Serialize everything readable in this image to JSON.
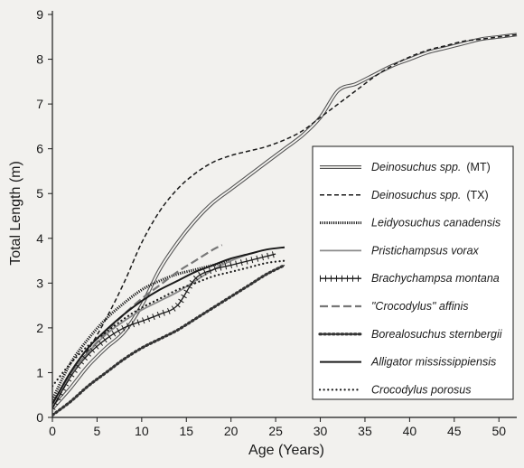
{
  "chart_data": {
    "type": "line",
    "title": "",
    "xlabel": "Age (Years)",
    "ylabel": "Total Length (m)",
    "xlim": [
      0,
      52
    ],
    "ylim": [
      0,
      9
    ],
    "xticks": [
      "0",
      "5",
      "10",
      "15",
      "20",
      "25",
      "30",
      "35",
      "40",
      "45",
      "50"
    ],
    "yticks": [
      "0",
      "1",
      "2",
      "3",
      "4",
      "5",
      "6",
      "7",
      "8",
      "9"
    ],
    "grid": false,
    "legend_position": "right",
    "series": [
      {
        "name": "Deinosuchus spp.",
        "name_suffix": "(MT)",
        "style": "double",
        "color": "#555555",
        "points": [
          [
            0,
            0.2
          ],
          [
            2,
            0.65
          ],
          [
            4,
            1.15
          ],
          [
            6,
            1.55
          ],
          [
            8,
            1.9
          ],
          [
            10,
            2.5
          ],
          [
            12,
            3.3
          ],
          [
            14,
            3.9
          ],
          [
            16,
            4.4
          ],
          [
            18,
            4.8
          ],
          [
            20,
            5.1
          ],
          [
            22,
            5.4
          ],
          [
            24,
            5.7
          ],
          [
            26,
            6.0
          ],
          [
            28,
            6.3
          ],
          [
            30,
            6.7
          ],
          [
            32,
            7.3
          ],
          [
            34,
            7.45
          ],
          [
            36,
            7.65
          ],
          [
            38,
            7.85
          ],
          [
            40,
            8.0
          ],
          [
            42,
            8.15
          ],
          [
            44,
            8.25
          ],
          [
            46,
            8.35
          ],
          [
            48,
            8.45
          ],
          [
            50,
            8.5
          ],
          [
            52,
            8.55
          ]
        ]
      },
      {
        "name": "Deinosuchus spp.",
        "name_suffix": "(TX)",
        "style": "dashed",
        "color": "#1a1a1a",
        "points": [
          [
            0,
            0.2
          ],
          [
            2,
            0.9
          ],
          [
            4,
            1.5
          ],
          [
            6,
            2.2
          ],
          [
            8,
            3.0
          ],
          [
            10,
            3.9
          ],
          [
            12,
            4.6
          ],
          [
            14,
            5.1
          ],
          [
            16,
            5.45
          ],
          [
            18,
            5.7
          ],
          [
            20,
            5.85
          ],
          [
            22,
            5.95
          ],
          [
            24,
            6.05
          ],
          [
            26,
            6.2
          ],
          [
            28,
            6.4
          ],
          [
            30,
            6.7
          ],
          [
            32,
            7.0
          ],
          [
            34,
            7.3
          ],
          [
            36,
            7.6
          ],
          [
            38,
            7.85
          ],
          [
            40,
            8.05
          ],
          [
            42,
            8.2
          ],
          [
            44,
            8.3
          ],
          [
            46,
            8.4
          ],
          [
            48,
            8.45
          ],
          [
            50,
            8.5
          ],
          [
            52,
            8.55
          ]
        ]
      },
      {
        "name": "Leidyosuchus canadensis",
        "style": "dense-dotted",
        "color": "#1a1a1a",
        "points": [
          [
            0,
            0.4
          ],
          [
            2,
            1.2
          ],
          [
            4,
            1.75
          ],
          [
            6,
            2.2
          ],
          [
            8,
            2.55
          ],
          [
            10,
            2.85
          ],
          [
            12,
            3.05
          ],
          [
            14,
            3.2
          ],
          [
            16,
            3.3
          ],
          [
            18,
            3.4
          ],
          [
            20,
            3.5
          ]
        ]
      },
      {
        "name": "Pristichampsus vorax",
        "style": "solid-gray",
        "color": "#8a8a8a",
        "points": [
          [
            0,
            0.3
          ],
          [
            2,
            0.95
          ],
          [
            4,
            1.45
          ],
          [
            6,
            1.85
          ],
          [
            8,
            2.15
          ],
          [
            10,
            2.4
          ],
          [
            12,
            2.6
          ],
          [
            14,
            2.8
          ],
          [
            16,
            3.05
          ],
          [
            18,
            3.3
          ],
          [
            20,
            3.5
          ],
          [
            22,
            3.65
          ]
        ]
      },
      {
        "name": "Brachychampsa montana",
        "style": "crossed",
        "color": "#1a1a1a",
        "points": [
          [
            0,
            0.2
          ],
          [
            2,
            0.9
          ],
          [
            4,
            1.4
          ],
          [
            6,
            1.75
          ],
          [
            8,
            2.0
          ],
          [
            10,
            2.15
          ],
          [
            12,
            2.3
          ],
          [
            14,
            2.5
          ],
          [
            16,
            3.1
          ],
          [
            18,
            3.3
          ],
          [
            20,
            3.4
          ],
          [
            22,
            3.5
          ],
          [
            24,
            3.6
          ],
          [
            25,
            3.65
          ]
        ]
      },
      {
        "name": "\"Crocodylus\" affinis",
        "style": "long-dashed-gray",
        "color": "#777777",
        "points": [
          [
            0,
            0.3
          ],
          [
            2,
            0.95
          ],
          [
            4,
            1.45
          ],
          [
            6,
            1.9
          ],
          [
            8,
            2.3
          ],
          [
            10,
            2.65
          ],
          [
            12,
            2.95
          ],
          [
            14,
            3.25
          ],
          [
            16,
            3.5
          ],
          [
            18,
            3.75
          ],
          [
            19,
            3.85
          ]
        ]
      },
      {
        "name": "Borealosuchus sternbergii",
        "style": "beaded",
        "color": "#1a1a1a",
        "points": [
          [
            0,
            0.05
          ],
          [
            2,
            0.35
          ],
          [
            4,
            0.7
          ],
          [
            6,
            1.0
          ],
          [
            8,
            1.3
          ],
          [
            10,
            1.55
          ],
          [
            12,
            1.75
          ],
          [
            14,
            1.95
          ],
          [
            16,
            2.2
          ],
          [
            18,
            2.45
          ],
          [
            20,
            2.7
          ],
          [
            22,
            2.95
          ],
          [
            24,
            3.2
          ],
          [
            26,
            3.4
          ]
        ]
      },
      {
        "name": "Alligator mississippiensis",
        "style": "solid-thick",
        "color": "#1a1a1a",
        "points": [
          [
            0,
            0.3
          ],
          [
            2,
            1.0
          ],
          [
            4,
            1.55
          ],
          [
            6,
            1.95
          ],
          [
            8,
            2.3
          ],
          [
            10,
            2.6
          ],
          [
            12,
            2.85
          ],
          [
            14,
            3.05
          ],
          [
            16,
            3.25
          ],
          [
            18,
            3.4
          ],
          [
            20,
            3.55
          ],
          [
            22,
            3.65
          ],
          [
            24,
            3.75
          ],
          [
            26,
            3.8
          ]
        ]
      },
      {
        "name": "Crocodylus porosus",
        "style": "dotted",
        "color": "#1a1a1a",
        "points": [
          [
            0,
            0.7
          ],
          [
            2,
            1.2
          ],
          [
            4,
            1.6
          ],
          [
            6,
            1.9
          ],
          [
            8,
            2.2
          ],
          [
            10,
            2.45
          ],
          [
            12,
            2.65
          ],
          [
            14,
            2.85
          ],
          [
            16,
            3.0
          ],
          [
            18,
            3.15
          ],
          [
            20,
            3.25
          ],
          [
            22,
            3.35
          ],
          [
            24,
            3.45
          ],
          [
            26,
            3.5
          ]
        ]
      }
    ]
  }
}
